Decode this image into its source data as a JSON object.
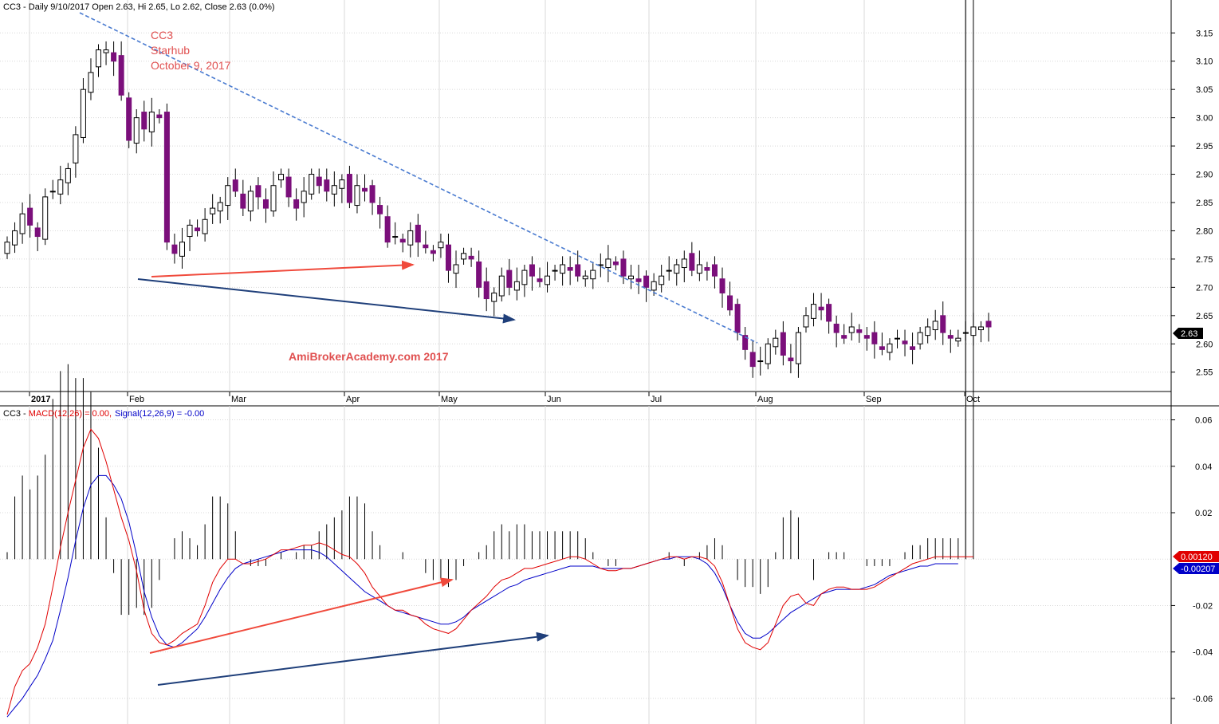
{
  "header": {
    "price_title": "CC3 - Daily 9/10/2017 Open 2.63, Hi 2.65, Lo 2.62, Close 2.63 (0.0%)",
    "macd_title_prefix": "CC3 - ",
    "macd_label": "MACD(12,26) = 0.00,",
    "signal_label": "Signal(12,26,9) = -0.00"
  },
  "annotations": {
    "symbol": "CC3",
    "company": "Starhub",
    "date": "October 9, 2017",
    "watermark": "AmiBrokerAcademy.com  2017"
  },
  "colors": {
    "bear_candle": "#7b0f7b",
    "bull_candle": "#ffffff",
    "macd_line": "#e00000",
    "signal_line": "#0000c8",
    "trend_red": "#f04a3c",
    "trend_blue": "#1f3f7a",
    "resistance": "#4a7bd0",
    "annotation_text": "#e05050",
    "grid": "#d8d8d8"
  },
  "chart_data": [
    {
      "type": "candlestick",
      "panel": "price",
      "ylim": [
        2.52,
        3.18
      ],
      "y_ticks": [
        3.15,
        3.1,
        3.05,
        3.0,
        2.95,
        2.9,
        2.85,
        2.8,
        2.75,
        2.7,
        2.65,
        2.6,
        2.55
      ],
      "x_labels": [
        "2017",
        "Feb",
        "Mar",
        "Apr",
        "May",
        "Jun",
        "Jul",
        "Aug",
        "Sep",
        "Oct"
      ],
      "last_price_label": "2.63",
      "close": [
        2.78,
        2.8,
        2.83,
        2.81,
        2.79,
        2.86,
        2.87,
        2.89,
        2.91,
        2.97,
        3.05,
        3.08,
        3.12,
        3.12,
        3.1,
        3.04,
        2.96,
        3.0,
        2.98,
        3.01,
        3.0,
        2.78,
        2.76,
        2.78,
        2.81,
        2.8,
        2.82,
        2.84,
        2.85,
        2.88,
        2.87,
        2.84,
        2.87,
        2.86,
        2.84,
        2.88,
        2.9,
        2.86,
        2.84,
        2.87,
        2.9,
        2.88,
        2.87,
        2.88,
        2.89,
        2.85,
        2.88,
        2.87,
        2.85,
        2.83,
        2.78,
        2.79,
        2.78,
        2.8,
        2.78,
        2.77,
        2.76,
        2.78,
        2.73,
        2.74,
        2.76,
        2.75,
        2.7,
        2.68,
        2.69,
        2.72,
        2.7,
        2.71,
        2.73,
        2.72,
        2.71,
        2.72,
        2.73,
        2.74,
        2.73,
        2.72,
        2.72,
        2.73,
        2.74,
        2.75,
        2.74,
        2.72,
        2.72,
        2.71,
        2.7,
        2.71,
        2.72,
        2.73,
        2.74,
        2.75,
        2.73,
        2.74,
        2.73,
        2.72,
        2.69,
        2.66,
        2.62,
        2.59,
        2.56,
        2.57,
        2.6,
        2.61,
        2.58,
        2.57,
        2.62,
        2.65,
        2.67,
        2.66,
        2.64,
        2.62,
        2.61,
        2.63,
        2.62,
        2.61,
        2.6,
        2.59,
        2.6,
        2.61,
        2.6,
        2.59,
        2.62,
        2.63,
        2.64,
        2.62,
        2.61,
        2.61,
        2.62,
        2.63,
        2.63,
        2.63
      ],
      "range_low": 2.54,
      "range_high": 3.16
    },
    {
      "type": "line+bar",
      "panel": "macd",
      "ylim": [
        -0.07,
        0.065
      ],
      "y_ticks": [
        0.06,
        0.04,
        0.02,
        -0.02,
        -0.04,
        -0.06
      ],
      "series": [
        {
          "name": "MACD(12,26)",
          "value_label": "0.00120"
        },
        {
          "name": "Signal(12,26,9)",
          "value_label": "-0.00207"
        }
      ],
      "macd": [
        -0.067,
        -0.055,
        -0.048,
        -0.045,
        -0.038,
        -0.028,
        -0.012,
        0.005,
        0.02,
        0.034,
        0.048,
        0.056,
        0.052,
        0.042,
        0.03,
        0.018,
        0.008,
        -0.005,
        -0.022,
        -0.032,
        -0.036,
        -0.037,
        -0.035,
        -0.032,
        -0.03,
        -0.028,
        -0.02,
        -0.01,
        -0.004,
        0.0,
        0.0,
        -0.002,
        -0.002,
        -0.001,
        0.0,
        0.002,
        0.004,
        0.004,
        0.005,
        0.006,
        0.006,
        0.007,
        0.006,
        0.004,
        0.002,
        0.001,
        -0.002,
        -0.006,
        -0.012,
        -0.016,
        -0.02,
        -0.022,
        -0.022,
        -0.024,
        -0.025,
        -0.028,
        -0.03,
        -0.031,
        -0.032,
        -0.03,
        -0.026,
        -0.022,
        -0.019,
        -0.016,
        -0.012,
        -0.009,
        -0.008,
        -0.006,
        -0.004,
        -0.004,
        -0.003,
        -0.002,
        -0.001,
        0.0,
        0.001,
        0.001,
        0.0,
        -0.002,
        -0.004,
        -0.005,
        -0.005,
        -0.004,
        -0.004,
        -0.003,
        -0.002,
        -0.001,
        0.0,
        0.001,
        0.001,
        0.0,
        0.001,
        0.001,
        0.0,
        -0.003,
        -0.01,
        -0.02,
        -0.03,
        -0.036,
        -0.038,
        -0.039,
        -0.036,
        -0.028,
        -0.02,
        -0.016,
        -0.015,
        -0.019,
        -0.02,
        -0.015,
        -0.013,
        -0.012,
        -0.012,
        -0.013,
        -0.013,
        -0.013,
        -0.012,
        -0.01,
        -0.008,
        -0.006,
        -0.004,
        -0.002,
        -0.001,
        0.0,
        0.001,
        0.001,
        0.001,
        0.001,
        0.001,
        0.001
      ],
      "signal": [
        -0.068,
        -0.064,
        -0.06,
        -0.055,
        -0.05,
        -0.043,
        -0.035,
        -0.022,
        -0.008,
        0.008,
        0.022,
        0.032,
        0.036,
        0.036,
        0.032,
        0.026,
        0.016,
        0.002,
        -0.014,
        -0.025,
        -0.033,
        -0.037,
        -0.038,
        -0.036,
        -0.033,
        -0.03,
        -0.025,
        -0.019,
        -0.013,
        -0.008,
        -0.004,
        -0.002,
        -0.001,
        0.0,
        0.001,
        0.002,
        0.003,
        0.004,
        0.004,
        0.004,
        0.004,
        0.003,
        0.001,
        -0.002,
        -0.005,
        -0.008,
        -0.011,
        -0.014,
        -0.016,
        -0.018,
        -0.02,
        -0.022,
        -0.023,
        -0.024,
        -0.025,
        -0.026,
        -0.027,
        -0.028,
        -0.028,
        -0.027,
        -0.025,
        -0.022,
        -0.02,
        -0.018,
        -0.016,
        -0.014,
        -0.012,
        -0.011,
        -0.009,
        -0.008,
        -0.007,
        -0.006,
        -0.005,
        -0.004,
        -0.003,
        -0.003,
        -0.003,
        -0.003,
        -0.004,
        -0.004,
        -0.004,
        -0.004,
        -0.004,
        -0.003,
        -0.002,
        -0.001,
        0.0,
        0.0,
        0.001,
        0.001,
        0.001,
        0.0,
        -0.002,
        -0.006,
        -0.012,
        -0.02,
        -0.027,
        -0.032,
        -0.034,
        -0.034,
        -0.032,
        -0.029,
        -0.026,
        -0.023,
        -0.021,
        -0.019,
        -0.017,
        -0.015,
        -0.014,
        -0.013,
        -0.013,
        -0.013,
        -0.013,
        -0.012,
        -0.011,
        -0.009,
        -0.007,
        -0.006,
        -0.005,
        -0.004,
        -0.003,
        -0.003,
        -0.002,
        -0.002,
        -0.002,
        -0.002
      ]
    }
  ]
}
